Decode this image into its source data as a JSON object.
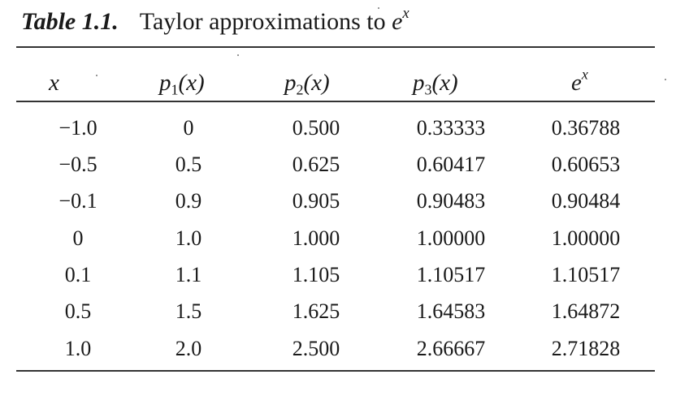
{
  "caption": {
    "label": "Table 1.1.",
    "title_text": "Taylor approximations to ",
    "title_symbol": "e",
    "title_superscript": "x"
  },
  "table": {
    "headers": [
      {
        "base": "x",
        "sub": "",
        "arg": ""
      },
      {
        "base": "p",
        "sub": "1",
        "arg": "(x)"
      },
      {
        "base": "p",
        "sub": "2",
        "arg": "(x)"
      },
      {
        "base": "p",
        "sub": "3",
        "arg": "(x)"
      },
      {
        "base": "e",
        "sup": "x"
      }
    ],
    "rows": [
      [
        "−1.0",
        "0",
        "0.500",
        "0.33333",
        "0.36788"
      ],
      [
        "−0.5",
        "0.5",
        "0.625",
        "0.60417",
        "0.60653"
      ],
      [
        "−0.1",
        "0.9",
        "0.905",
        "0.90483",
        "0.90484"
      ],
      [
        "0",
        "1.0",
        "1.000",
        "1.00000",
        "1.00000"
      ],
      [
        "0.1",
        "1.1",
        "1.105",
        "1.10517",
        "1.10517"
      ],
      [
        "0.5",
        "1.5",
        "1.625",
        "1.64583",
        "1.64872"
      ],
      [
        "1.0",
        "2.0",
        "2.500",
        "2.66667",
        "2.71828"
      ]
    ]
  }
}
